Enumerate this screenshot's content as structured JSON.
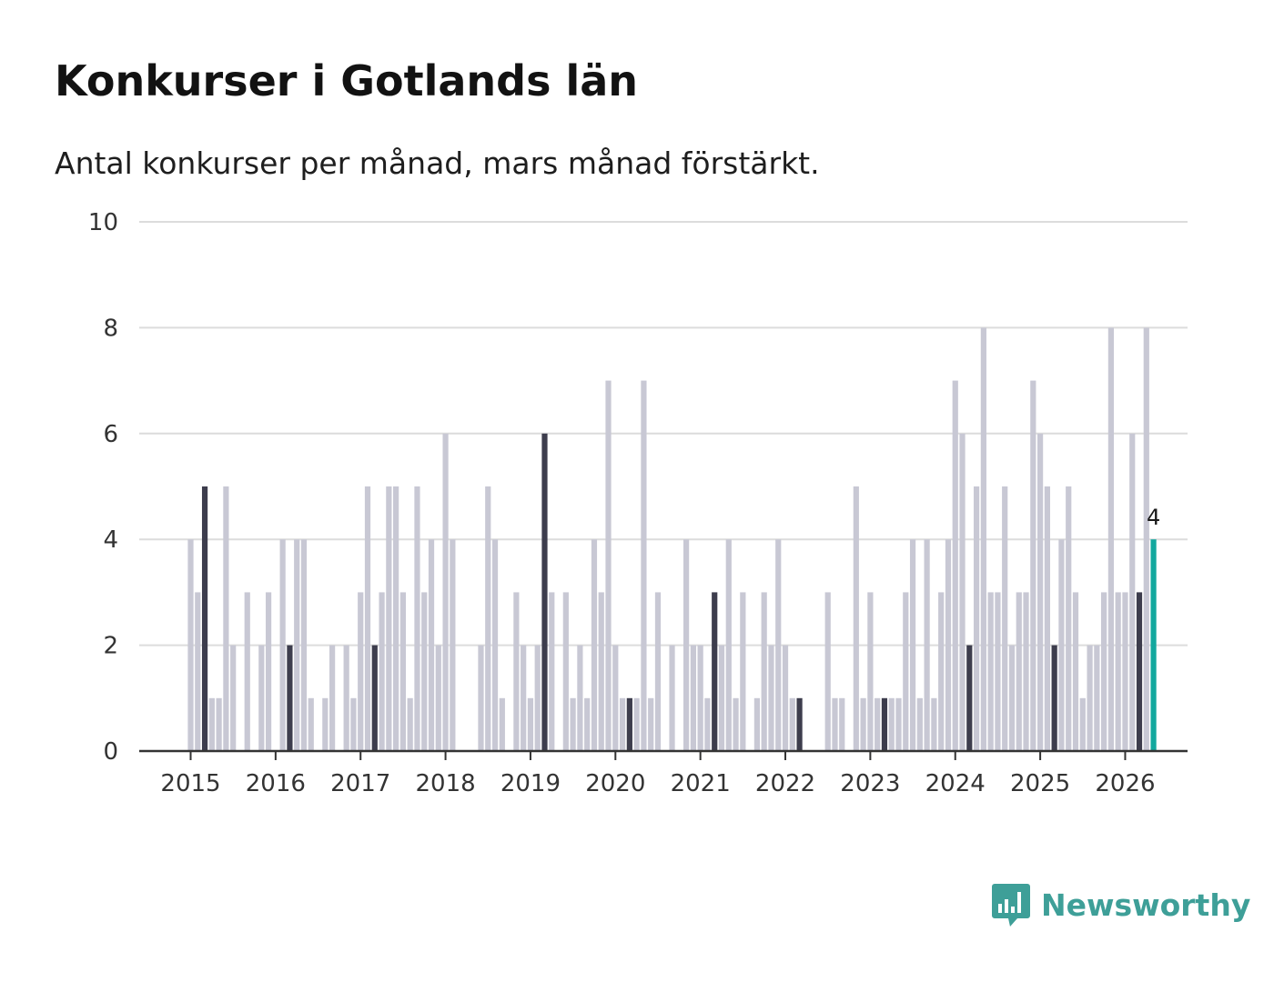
{
  "chart_data": {
    "type": "bar",
    "title": "Konkurser i Gotlands län",
    "subtitle": "Antal konkurser per månad, mars månad förstärkt.",
    "xlabel": "",
    "ylabel": "",
    "ylim": [
      0,
      10
    ],
    "y_ticks": [
      "0",
      "2",
      "4",
      "6",
      "8",
      "10"
    ],
    "x_tick_labels": [
      "2015",
      "2016",
      "2017",
      "2018",
      "2019",
      "2020",
      "2021",
      "2022",
      "2023",
      "2024",
      "2025",
      "2026"
    ],
    "start": "2015-01",
    "highlight_month": "mars",
    "values": [
      4,
      3,
      5,
      1,
      1,
      5,
      2,
      0,
      3,
      0,
      2,
      3,
      0,
      4,
      2,
      4,
      4,
      1,
      0,
      1,
      2,
      0,
      2,
      1,
      3,
      5,
      2,
      3,
      5,
      5,
      3,
      1,
      5,
      3,
      4,
      2,
      6,
      4,
      0,
      0,
      0,
      2,
      5,
      4,
      1,
      0,
      3,
      2,
      1,
      2,
      6,
      3,
      0,
      3,
      1,
      2,
      1,
      4,
      3,
      7,
      2,
      1,
      1,
      1,
      7,
      1,
      3,
      0,
      2,
      0,
      4,
      2,
      2,
      1,
      3,
      2,
      4,
      1,
      3,
      0,
      1,
      3,
      2,
      4,
      2,
      1,
      1,
      0,
      0,
      0,
      3,
      1,
      1,
      0,
      5,
      1,
      3,
      1,
      1,
      1,
      1,
      3,
      4,
      1,
      4,
      1,
      3,
      4,
      7,
      6,
      2,
      5,
      8,
      3,
      3,
      5,
      2,
      3,
      3,
      7,
      6,
      5,
      2,
      4,
      5,
      3,
      1,
      2,
      2,
      3,
      8,
      3,
      3,
      6,
      3,
      8,
      4
    ],
    "last_value_label": "4",
    "colors": {
      "bar": "#c8c8d4",
      "highlight": "#3d3d4d",
      "latest": "#13a89e",
      "grid": "#dcdcdc",
      "axis": "#333333"
    }
  },
  "brand": {
    "name": "Newsworthy",
    "color": "#3e9f98",
    "icon": "bar-chart-speech-bubble-icon"
  }
}
